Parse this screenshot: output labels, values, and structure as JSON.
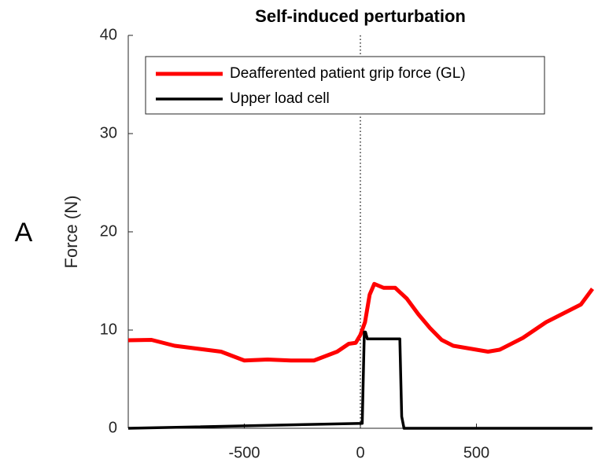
{
  "chart_data": {
    "type": "line",
    "title": "Self-induced perturbation",
    "ylabel": "Force (N)",
    "annotation": "A",
    "xlim": [
      -1000,
      1000
    ],
    "ylim": [
      0,
      40
    ],
    "xticks": [
      -500,
      0,
      500
    ],
    "yticks": [
      0,
      10,
      20,
      30,
      40
    ],
    "vline": 0,
    "legend": "upper-left",
    "series": [
      {
        "name": "Deafferented patient grip force (GL)",
        "color": "#ff0000",
        "x": [
          -1000,
          -900,
          -800,
          -700,
          -600,
          -500,
          -400,
          -300,
          -200,
          -100,
          -50,
          -20,
          0,
          20,
          40,
          60,
          100,
          150,
          200,
          250,
          300,
          350,
          400,
          500,
          550,
          600,
          700,
          800,
          900,
          950,
          1000
        ],
        "values": [
          8.96,
          9.0,
          8.4,
          8.1,
          7.8,
          6.9,
          7.0,
          6.9,
          6.9,
          7.8,
          8.6,
          8.7,
          9.5,
          10.8,
          13.6,
          14.7,
          14.3,
          14.3,
          13.2,
          11.6,
          10.2,
          9.0,
          8.4,
          8.0,
          7.8,
          8.0,
          9.2,
          10.8,
          12.0,
          12.6,
          14.2
        ]
      },
      {
        "name": "Upper load cell",
        "color": "#000000",
        "x": [
          -1000,
          8,
          17,
          22,
          30,
          170,
          178,
          188,
          1000
        ],
        "values": [
          0,
          0.5,
          9.8,
          9.8,
          9.1,
          9.1,
          1.2,
          0,
          0
        ]
      }
    ]
  }
}
